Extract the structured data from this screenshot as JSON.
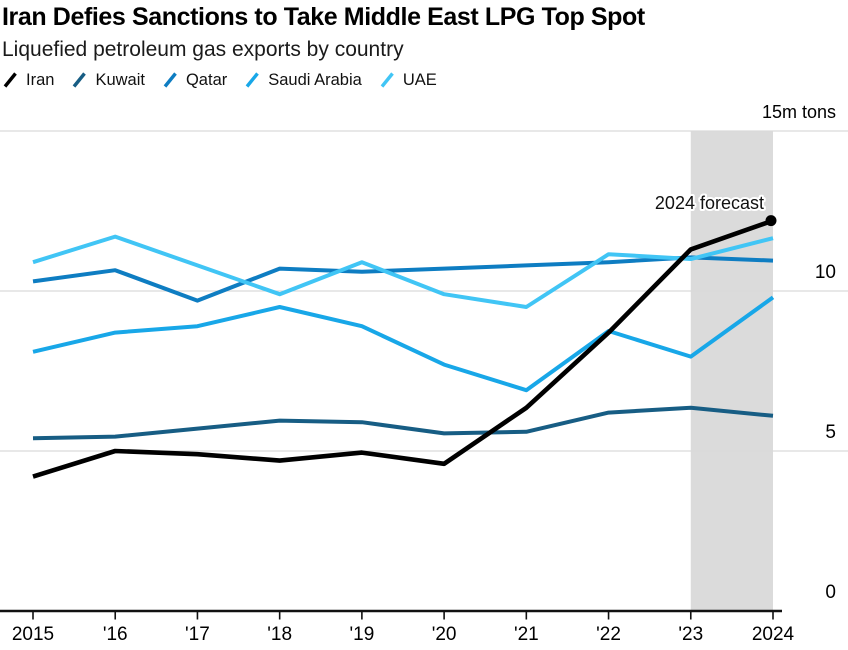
{
  "header": {
    "title": "Iran Defies Sanctions to Take Middle East LPG Top Spot",
    "subtitle": "Liquefied petroleum gas exports by country"
  },
  "chart_data": {
    "type": "line",
    "title": "Iran Defies Sanctions to Take Middle East LPG Top Spot",
    "subtitle": "Liquefied petroleum gas exports by country",
    "unit": "m tons",
    "x": [
      2015,
      2016,
      2017,
      2018,
      2019,
      2020,
      2021,
      2022,
      2023,
      2024
    ],
    "x_tick_labels": [
      "2015",
      "'16",
      "'17",
      "'18",
      "'19",
      "'20",
      "'21",
      "'22",
      "'23",
      "2024"
    ],
    "ylim": [
      0,
      15
    ],
    "yticks": [
      0,
      5,
      10,
      15
    ],
    "ytick_labels": [
      "0",
      "5",
      "10",
      "15m tons"
    ],
    "grid": "horizontal",
    "legend_position": "top",
    "series": [
      {
        "name": "Iran",
        "color": "#000000",
        "values": [
          4.2,
          5.0,
          4.9,
          4.7,
          4.95,
          4.6,
          6.35,
          8.7,
          11.3,
          12.2
        ]
      },
      {
        "name": "Kuwait",
        "color": "#175d84",
        "values": [
          5.4,
          5.45,
          5.7,
          5.95,
          5.9,
          5.55,
          5.6,
          6.2,
          6.35,
          6.1
        ]
      },
      {
        "name": "Qatar",
        "color": "#0e7dc2",
        "values": [
          10.3,
          10.65,
          9.7,
          10.7,
          10.6,
          10.7,
          10.8,
          10.9,
          11.05,
          10.95
        ]
      },
      {
        "name": "Saudi Arabia",
        "color": "#18a7e8",
        "values": [
          8.1,
          8.7,
          8.9,
          9.5,
          8.9,
          7.7,
          6.9,
          8.75,
          7.95,
          9.8
        ]
      },
      {
        "name": "UAE",
        "color": "#41c5f5",
        "values": [
          10.9,
          11.7,
          10.8,
          9.9,
          10.9,
          9.9,
          9.5,
          11.15,
          11.0,
          11.65
        ]
      }
    ],
    "forecast_band": {
      "x_start": 2023,
      "x_end": 2024,
      "label": "2024 forecast",
      "color": "#dbdbdb"
    },
    "end_dot": {
      "series": "Iran",
      "year": 2024
    },
    "axis_color": "#111111",
    "gridline_color": "#d9d9d9"
  }
}
